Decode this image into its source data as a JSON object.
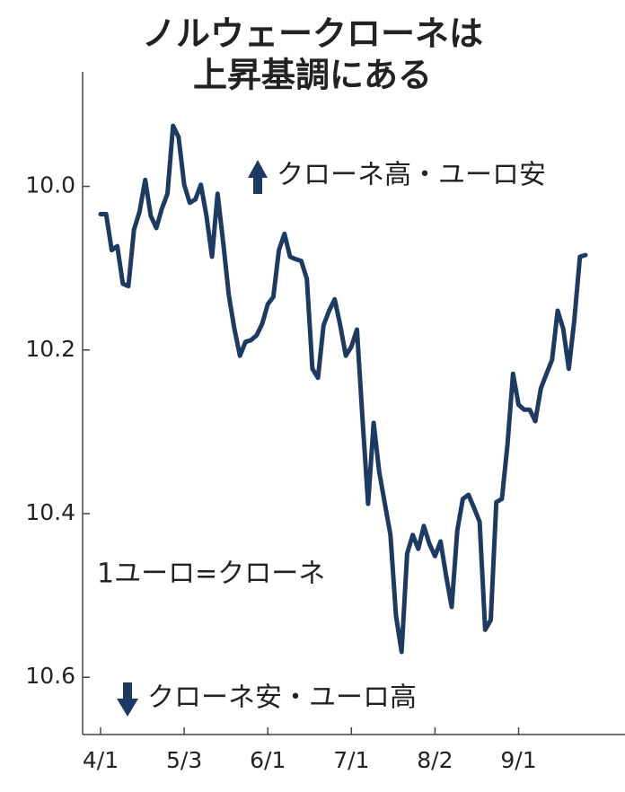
{
  "chart_data": {
    "type": "line",
    "title_lines": [
      "ノルウェークローネは",
      "上昇基調にある"
    ],
    "annotations": [
      "クローネ高・ユーロ安",
      "1ユーロ=クローネ",
      "クローネ安・ユーロ高"
    ],
    "categories": [
      "4/1",
      null,
      null,
      null,
      null,
      null,
      null,
      null,
      null,
      null,
      null,
      null,
      null,
      null,
      null,
      "5/3",
      null,
      null,
      null,
      null,
      null,
      null,
      null,
      null,
      null,
      null,
      null,
      null,
      null,
      null,
      "6/1",
      null,
      null,
      null,
      null,
      null,
      null,
      null,
      null,
      null,
      null,
      null,
      null,
      null,
      null,
      "7/1",
      null,
      null,
      null,
      null,
      null,
      null,
      null,
      null,
      null,
      null,
      null,
      null,
      null,
      null,
      "8/2",
      null,
      null,
      null,
      null,
      null,
      null,
      null,
      null,
      null,
      null,
      null,
      null,
      null,
      null,
      "9/1",
      null,
      null,
      null,
      null,
      null,
      null,
      null,
      null,
      null,
      null,
      null,
      null
    ],
    "values": [
      10.034,
      10.034,
      10.078,
      10.073,
      10.119,
      10.122,
      10.053,
      10.031,
      9.992,
      10.036,
      10.051,
      10.027,
      10.009,
      9.926,
      9.94,
      9.998,
      10.02,
      10.016,
      9.998,
      10.036,
      10.086,
      10.009,
      10.069,
      10.133,
      10.174,
      10.207,
      10.19,
      10.188,
      10.182,
      10.168,
      10.144,
      10.135,
      10.078,
      10.058,
      10.086,
      10.089,
      10.091,
      10.113,
      10.223,
      10.234,
      10.17,
      10.152,
      10.138,
      10.17,
      10.207,
      10.196,
      10.175,
      10.284,
      10.388,
      10.289,
      10.349,
      10.388,
      10.426,
      10.525,
      10.569,
      10.449,
      10.426,
      10.443,
      10.415,
      10.437,
      10.452,
      10.434,
      10.476,
      10.514,
      10.421,
      10.382,
      10.377,
      10.393,
      10.41,
      10.542,
      10.53,
      10.386,
      10.382,
      10.316,
      10.229,
      10.267,
      10.273,
      10.273,
      10.287,
      10.247,
      10.229,
      10.212,
      10.152,
      10.174,
      10.223,
      10.163,
      10.086,
      10.084
    ],
    "color": "#1d3a63",
    "ylim": [
      10.67,
      9.86
    ],
    "yticks": [
      {
        "value": 10,
        "label": "10.0"
      },
      10.2,
      10.4,
      10.6
    ]
  }
}
